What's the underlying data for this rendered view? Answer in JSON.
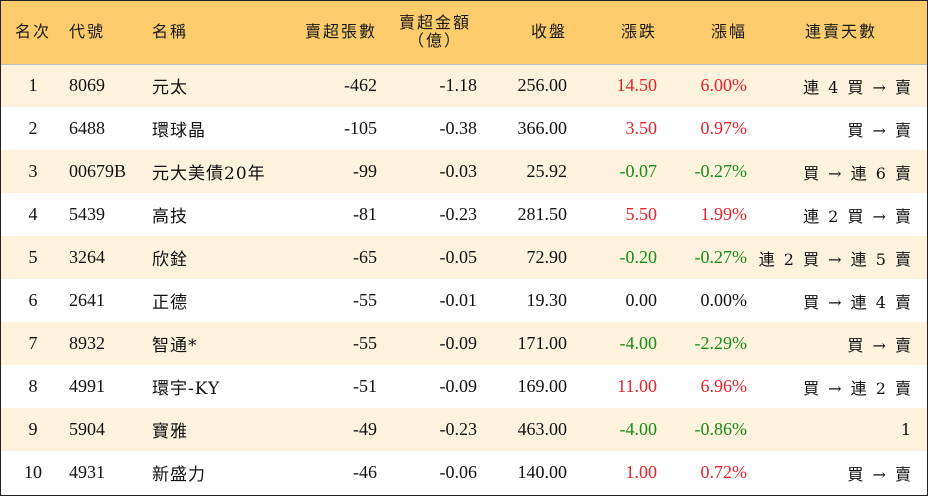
{
  "colors": {
    "header_bg": "#fccb6b",
    "alt_row_bg": "#fdf3dd",
    "up": "#e8202a",
    "down": "#1a8a1a"
  },
  "headers": {
    "rank": "名次",
    "code": "代號",
    "name": "名稱",
    "net_sell_shares": "賣超張數",
    "net_sell_amount_line1": "賣超金額",
    "net_sell_amount_line2": "（億）",
    "close": "收盤",
    "change": "漲跌",
    "change_pct": "漲幅",
    "streak": "連賣天數"
  },
  "rows": [
    {
      "rank": "1",
      "code": "8069",
      "name": "元太",
      "shares": "-462",
      "amount": "-1.18",
      "close": "256.00",
      "change": "14.50",
      "pct": "6.00%",
      "streak": "連 4 買 → 賣",
      "dir": "up"
    },
    {
      "rank": "2",
      "code": "6488",
      "name": "環球晶",
      "shares": "-105",
      "amount": "-0.38",
      "close": "366.00",
      "change": "3.50",
      "pct": "0.97%",
      "streak": "買 → 賣",
      "dir": "up"
    },
    {
      "rank": "3",
      "code": "00679B",
      "name": "元大美債20年",
      "shares": "-99",
      "amount": "-0.03",
      "close": "25.92",
      "change": "-0.07",
      "pct": "-0.27%",
      "streak": "買 → 連 6 賣",
      "dir": "down"
    },
    {
      "rank": "4",
      "code": "5439",
      "name": "高技",
      "shares": "-81",
      "amount": "-0.23",
      "close": "281.50",
      "change": "5.50",
      "pct": "1.99%",
      "streak": "連 2 買 → 賣",
      "dir": "up"
    },
    {
      "rank": "5",
      "code": "3264",
      "name": "欣銓",
      "shares": "-65",
      "amount": "-0.05",
      "close": "72.90",
      "change": "-0.20",
      "pct": "-0.27%",
      "streak": "連 2 買 → 連 5 賣",
      "dir": "down"
    },
    {
      "rank": "6",
      "code": "2641",
      "name": "正德",
      "shares": "-55",
      "amount": "-0.01",
      "close": "19.30",
      "change": "0.00",
      "pct": "0.00%",
      "streak": "買 → 連 4 賣",
      "dir": "flat"
    },
    {
      "rank": "7",
      "code": "8932",
      "name": "智通*",
      "shares": "-55",
      "amount": "-0.09",
      "close": "171.00",
      "change": "-4.00",
      "pct": "-2.29%",
      "streak": "買 → 賣",
      "dir": "down"
    },
    {
      "rank": "8",
      "code": "4991",
      "name": "環宇-KY",
      "shares": "-51",
      "amount": "-0.09",
      "close": "169.00",
      "change": "11.00",
      "pct": "6.96%",
      "streak": "買 → 連 2 賣",
      "dir": "up"
    },
    {
      "rank": "9",
      "code": "5904",
      "name": "寶雅",
      "shares": "-49",
      "amount": "-0.23",
      "close": "463.00",
      "change": "-4.00",
      "pct": "-0.86%",
      "streak": "1",
      "dir": "down"
    },
    {
      "rank": "10",
      "code": "4931",
      "name": "新盛力",
      "shares": "-46",
      "amount": "-0.06",
      "close": "140.00",
      "change": "1.00",
      "pct": "0.72%",
      "streak": "買 → 賣",
      "dir": "up"
    }
  ]
}
